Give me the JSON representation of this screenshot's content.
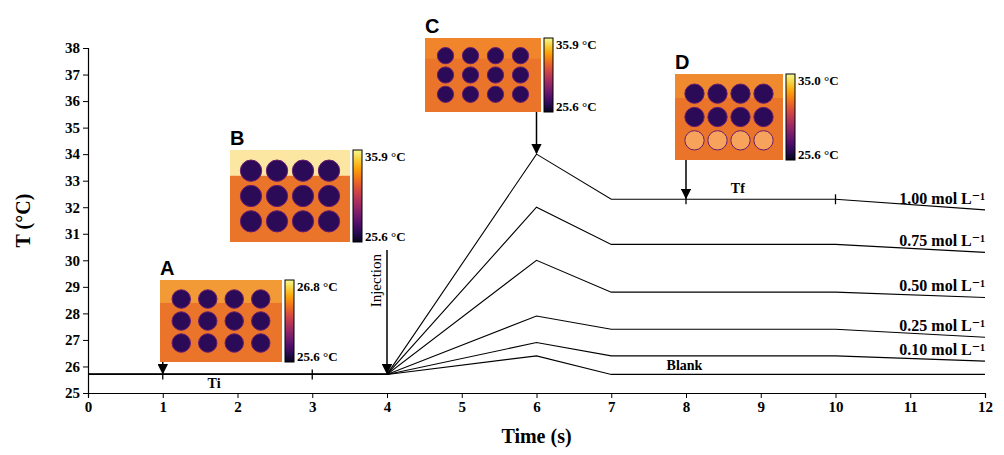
{
  "chart_data": {
    "type": "line",
    "x_label": "Time (s)",
    "y_label": "T (°C)",
    "x": [
      0,
      4,
      6,
      7,
      10,
      12
    ],
    "series": [
      {
        "name": "Blank",
        "color": "#000000",
        "values": [
          25.7,
          25.7,
          26.4,
          25.7,
          25.7,
          25.7
        ]
      },
      {
        "name": "0.10 mol L⁻¹",
        "color": "#000000",
        "values": [
          25.7,
          25.7,
          26.9,
          26.4,
          26.4,
          26.2
        ]
      },
      {
        "name": "0.25 mol L⁻¹",
        "color": "#000000",
        "values": [
          25.7,
          25.7,
          27.9,
          27.4,
          27.4,
          27.1
        ]
      },
      {
        "name": "0.50 mol L⁻¹",
        "color": "#000000",
        "values": [
          25.7,
          25.7,
          30.0,
          28.8,
          28.8,
          28.6
        ]
      },
      {
        "name": "0.75 mol L⁻¹",
        "color": "#000000",
        "values": [
          25.7,
          25.7,
          32.0,
          30.6,
          30.6,
          30.3
        ]
      },
      {
        "name": "1.00 mol L⁻¹",
        "color": "#000000",
        "values": [
          25.7,
          25.7,
          34.0,
          32.3,
          32.3,
          31.9
        ]
      }
    ],
    "xlim": [
      0,
      12
    ],
    "ylim": [
      25,
      38
    ],
    "xticks": [
      0,
      1,
      2,
      3,
      4,
      5,
      6,
      7,
      8,
      9,
      10,
      11,
      12
    ],
    "yticks": [
      25,
      26,
      27,
      28,
      29,
      30,
      31,
      32,
      33,
      34,
      35,
      36,
      37,
      38
    ],
    "grid": false,
    "annotations": [
      {
        "text": "Injection",
        "x": 4,
        "y": 25.7
      }
    ],
    "intervals": [
      {
        "label": "Ti",
        "start": 1,
        "end": 3,
        "y": 25.7
      },
      {
        "label": "Tf",
        "start": 8,
        "end": 10,
        "y": 32.3
      }
    ],
    "insets": [
      {
        "label": "A",
        "x": 1,
        "y": 25.7,
        "scale_min": {
          "value": 25.6,
          "label": "25.6 °C"
        },
        "scale_max": {
          "value": 26.8,
          "label": "26.8 °C"
        }
      },
      {
        "label": "B",
        "scale_min": {
          "value": 25.6,
          "label": "25.6 °C"
        },
        "scale_max": {
          "value": 35.9,
          "label": "35.9 °C"
        }
      },
      {
        "label": "C",
        "x": 6,
        "y": 34.0,
        "scale_min": {
          "value": 25.6,
          "label": "25.6 °C"
        },
        "scale_max": {
          "value": 35.9,
          "label": "35.9 °C"
        }
      },
      {
        "label": "D",
        "x": 8,
        "y": 32.3,
        "scale_min": {
          "value": 25.6,
          "label": "25.6 °C"
        },
        "scale_max": {
          "value": 35.0,
          "label": "35.0 °C"
        }
      }
    ]
  }
}
